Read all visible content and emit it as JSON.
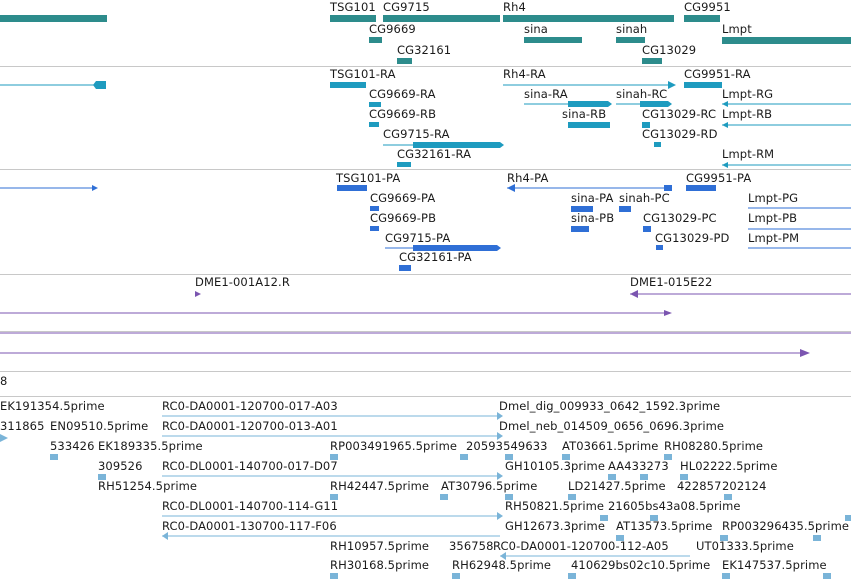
{
  "colors": {
    "gene": "#2d8c8c",
    "transcript": "#1e9bbf",
    "protein": "#2f6fd6",
    "clone": "#7b55b0",
    "est": "#7ab4d8",
    "separator": "#c8c8c8",
    "text": "#1a1a1a"
  },
  "tracks": {
    "genes": {
      "labels": [
        "TSG101",
        "CG9715",
        "Rh4",
        "CG9951",
        "CG9669",
        "sina",
        "sinah",
        "Lmpt",
        "CG32161",
        "CG13029"
      ]
    },
    "transcripts": {
      "labels": [
        "TSG101-RA",
        "Rh4-RA",
        "CG9951-RA",
        "CG9669-RA",
        "sina-RA",
        "sinah-RC",
        "Lmpt-RG",
        "CG9669-RB",
        "sina-RB",
        "CG13029-RC",
        "Lmpt-RB",
        "CG9715-RA",
        "CG13029-RD",
        "CG32161-RA",
        "Lmpt-RM"
      ]
    },
    "proteins": {
      "labels": [
        "TSG101-PA",
        "Rh4-PA",
        "CG9951-PA",
        "CG9669-PA",
        "sina-PA",
        "sinah-PC",
        "Lmpt-PG",
        "CG9669-PB",
        "sina-PB",
        "CG13029-PC",
        "Lmpt-PB",
        "CG9715-PA",
        "CG13029-PD",
        "Lmpt-PM",
        "CG32161-PA"
      ]
    },
    "clones": {
      "labels": [
        "DME1-001A12.R",
        "DME1-015E22"
      ]
    },
    "partial": {
      "label": "8"
    },
    "ests": {
      "labels": [
        "EK191354.5prime",
        "RC0-DA0001-120700-017-A03",
        "Dmel_dig_009933_0642_1592.3prime",
        "311865",
        "EN09510.5prime",
        "RC0-DA0001-120700-013-A01",
        "Dmel_neb_014509_0656_0696.3prime",
        "533426",
        "EK189335.5prime",
        "RP003491965.5prime",
        "20593549633",
        "AT03661.5prime",
        "RH08280.5prime",
        "309526",
        "RC0-DL0001-140700-017-D07",
        "GH10105.3prime",
        "AA433273",
        "HL02222.5prime",
        "RH51254.5prime",
        "RH42447.5prime",
        "AT30796.5prime",
        "LD21427.5prime",
        "422857",
        "202124",
        "RC0-DL0001-140700-114-G11",
        "RH50821.5prime",
        "21605bs43a08.5prime",
        "RC0-DA0001-130700-117-F06",
        "GH12673.3prime",
        "AT13573.5prime",
        "RP003296435.5prime",
        "RH10957.5prime",
        "356758",
        "RC0-DA0001-120700-112-A05",
        "UT01333.5prime",
        "RH30168.5prime",
        "RH62948.5prime",
        "410629bs02c10.5prime",
        "EK147537.5prime"
      ]
    }
  }
}
